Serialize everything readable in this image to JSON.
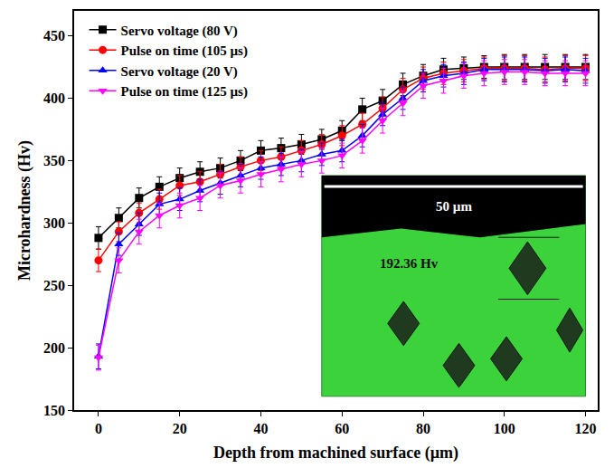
{
  "chart_data": {
    "type": "line",
    "x_label": "Depth from machined surface (µm)",
    "y_label": "Microhardness (Hv)",
    "x": [
      0,
      5,
      10,
      15,
      20,
      25,
      30,
      35,
      40,
      45,
      50,
      55,
      60,
      65,
      70,
      75,
      80,
      85,
      90,
      95,
      100,
      105,
      110,
      115,
      120
    ],
    "xlim": [
      -6,
      123
    ],
    "xticks": [
      0,
      20,
      40,
      60,
      80,
      100,
      120
    ],
    "ylim": [
      150,
      470
    ],
    "yticks": [
      150,
      200,
      250,
      300,
      350,
      400,
      450
    ],
    "legend": "top left",
    "grid": false,
    "series": [
      {
        "name": "Servo voltage (80 V)",
        "color": "#000000",
        "marker": "square",
        "line_style": "solid",
        "values": [
          288,
          304,
          320,
          329,
          336,
          341,
          344,
          350,
          358,
          360,
          363,
          367,
          374,
          391,
          398,
          411,
          418,
          423,
          424,
          425,
          425,
          425,
          425,
          425,
          425
        ],
        "errors": [
          9,
          8,
          8,
          8,
          8,
          8,
          8,
          8,
          8,
          8,
          8,
          8,
          8,
          9,
          9,
          9,
          9,
          9,
          9,
          9,
          10,
          10,
          10,
          10,
          10
        ]
      },
      {
        "name": "Pulse on time (105 µs)",
        "color": "#ff0000",
        "marker": "circle",
        "line_style": "solid",
        "values": [
          270,
          293,
          308,
          319,
          330,
          333,
          339,
          345,
          350,
          353,
          358,
          363,
          370,
          379,
          392,
          407,
          416,
          420,
          422,
          424,
          424,
          424,
          423,
          424,
          424
        ],
        "errors": [
          9,
          8,
          8,
          8,
          8,
          8,
          8,
          8,
          8,
          8,
          8,
          8,
          8,
          9,
          9,
          9,
          9,
          9,
          9,
          9,
          10,
          10,
          10,
          10,
          10
        ]
      },
      {
        "name": "Servo voltage (20 V)",
        "color": "#0000ff",
        "marker": "triangle-up",
        "line_style": "solid",
        "values": [
          193,
          283,
          299,
          315,
          319,
          326,
          332,
          338,
          344,
          347,
          350,
          355,
          358,
          370,
          387,
          400,
          414,
          418,
          420,
          423,
          423,
          423,
          422,
          423,
          422
        ],
        "errors": [
          10,
          9,
          9,
          9,
          9,
          9,
          9,
          9,
          9,
          9,
          9,
          9,
          9,
          9,
          9,
          9,
          9,
          9,
          9,
          9,
          10,
          10,
          10,
          10,
          10
        ]
      },
      {
        "name": "Pulse on time (125 µs)",
        "color": "#ff00ff",
        "marker": "triangle-down",
        "line_style": "solid",
        "values": [
          192,
          270,
          293,
          306,
          314,
          320,
          330,
          334,
          339,
          343,
          347,
          350,
          354,
          366,
          382,
          396,
          410,
          414,
          418,
          420,
          421,
          421,
          420,
          420,
          420
        ],
        "errors": [
          10,
          10,
          10,
          10,
          10,
          10,
          10,
          10,
          10,
          10,
          10,
          10,
          10,
          10,
          10,
          10,
          10,
          10,
          10,
          10,
          10,
          10,
          10,
          10,
          10
        ]
      }
    ],
    "inset": {
      "scale_bar": "50 µm",
      "label": "192.36 Hv"
    }
  }
}
